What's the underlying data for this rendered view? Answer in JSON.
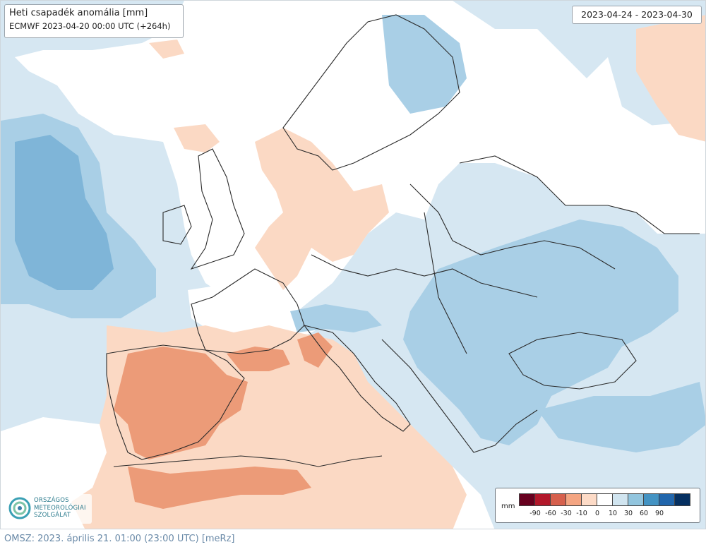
{
  "title": "Heti csapadék anomália [mm]",
  "subtitle": "ECMWF 2023-04-20 00:00 UTC (+264h)",
  "date_range": "2023-04-24 - 2023-04-30",
  "logo": {
    "lines": [
      "ORSZÁGOS",
      "METEOROLÓGIAI",
      "SZOLGÁLAT"
    ]
  },
  "legend": {
    "unit": "mm",
    "colors": [
      "#67001f",
      "#b2182b",
      "#d6604d",
      "#f4a582",
      "#fddbc7",
      "#ffffff",
      "#d1e5f0",
      "#92c5de",
      "#4393c3",
      "#2166ac",
      "#053061"
    ],
    "labels": [
      "-90",
      "-60",
      "-30",
      "-10",
      "0",
      "10",
      "30",
      "60",
      "90"
    ]
  },
  "footer": "OMSZ: 2023. április 21. 01:00 (23:00  UTC)  [meRz]",
  "colors": {
    "sea": "#d6e7f2",
    "land_dry": "#fbd9c4",
    "land_very_dry": "#ec9b78",
    "wet": "#a9cfe6",
    "wetter": "#7fb5d8",
    "neutral": "#ffffff"
  }
}
